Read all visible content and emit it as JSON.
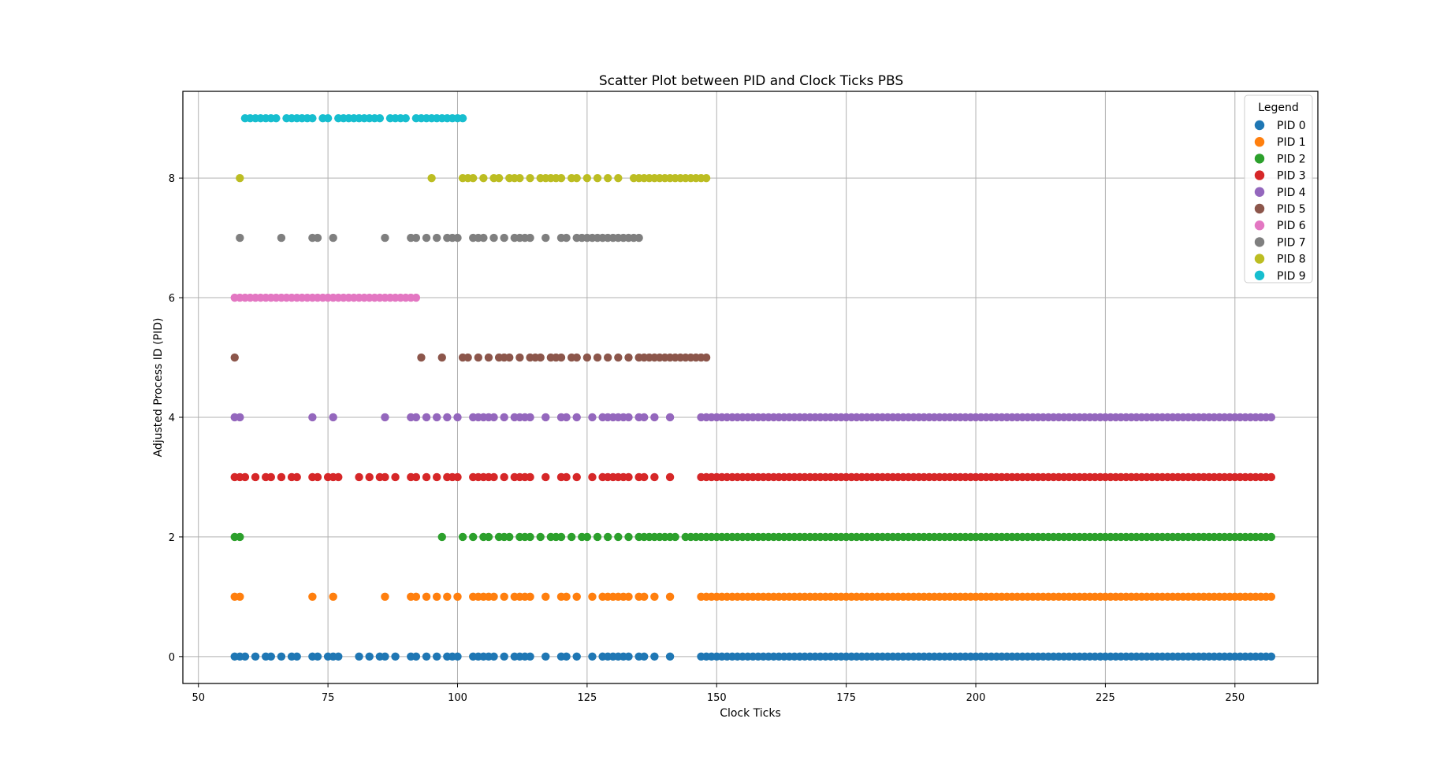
{
  "chart_data": {
    "type": "scatter",
    "title": "Scatter Plot between PID and Clock Ticks PBS",
    "xlabel": "Clock Ticks",
    "ylabel": "Adjusted Process ID (PID)",
    "xlim": [
      47,
      266
    ],
    "ylim": [
      -0.45,
      9.45
    ],
    "xticks": [
      50,
      75,
      100,
      125,
      150,
      175,
      200,
      225,
      250
    ],
    "yticks": [
      0,
      2,
      4,
      6,
      8
    ],
    "grid": true,
    "legend": {
      "title": "Legend",
      "placement": "top-right"
    },
    "colors": [
      "#1f77b4",
      "#ff7f0e",
      "#2ca02c",
      "#d62728",
      "#9467bd",
      "#8c564b",
      "#e377c2",
      "#7f7f7f",
      "#bcbd22",
      "#17becf"
    ],
    "series": [
      {
        "name": "PID 0",
        "y": 0,
        "x": [
          57,
          58,
          59,
          61,
          63,
          64,
          66,
          68,
          69,
          72,
          73,
          75,
          76,
          77,
          81,
          83,
          85,
          86,
          88,
          91,
          92,
          94,
          96,
          98,
          99,
          100,
          103,
          104,
          105,
          106,
          107,
          109,
          111,
          112,
          113,
          114,
          117,
          120,
          121,
          123,
          126,
          128,
          129,
          130,
          131,
          132,
          133,
          135,
          136,
          138,
          141,
          147,
          148,
          149,
          150,
          151,
          152,
          153,
          154,
          155,
          156,
          157,
          158,
          159,
          160,
          161,
          162,
          163,
          164,
          165,
          166,
          167,
          168,
          169,
          170,
          171,
          172,
          173,
          174,
          175,
          176,
          177,
          178,
          179,
          180,
          181,
          182,
          183,
          184,
          185,
          186,
          187,
          188,
          189,
          190,
          191,
          192,
          193,
          194,
          195,
          196,
          197,
          198,
          199,
          200,
          201,
          202,
          203,
          204,
          205,
          206,
          207,
          208,
          209,
          210,
          211,
          212,
          213,
          214,
          215,
          216,
          217,
          218,
          219,
          220,
          221,
          222,
          223,
          224,
          225,
          226,
          227,
          228,
          229,
          230,
          231,
          232,
          233,
          234,
          235,
          236,
          237,
          238,
          239,
          240,
          241,
          242,
          243,
          244,
          245,
          246,
          247,
          248,
          249,
          250,
          251,
          252,
          253,
          254,
          255,
          256,
          257
        ]
      },
      {
        "name": "PID 1",
        "y": 1,
        "x": [
          57,
          58,
          72,
          76,
          86,
          91,
          92,
          94,
          96,
          98,
          100,
          103,
          104,
          105,
          106,
          107,
          109,
          111,
          112,
          113,
          114,
          117,
          120,
          121,
          123,
          126,
          128,
          129,
          130,
          131,
          132,
          133,
          135,
          136,
          138,
          141,
          147,
          148,
          149,
          150,
          151,
          152,
          153,
          154,
          155,
          156,
          157,
          158,
          159,
          160,
          161,
          162,
          163,
          164,
          165,
          166,
          167,
          168,
          169,
          170,
          171,
          172,
          173,
          174,
          175,
          176,
          177,
          178,
          179,
          180,
          181,
          182,
          183,
          184,
          185,
          186,
          187,
          188,
          189,
          190,
          191,
          192,
          193,
          194,
          195,
          196,
          197,
          198,
          199,
          200,
          201,
          202,
          203,
          204,
          205,
          206,
          207,
          208,
          209,
          210,
          211,
          212,
          213,
          214,
          215,
          216,
          217,
          218,
          219,
          220,
          221,
          222,
          223,
          224,
          225,
          226,
          227,
          228,
          229,
          230,
          231,
          232,
          233,
          234,
          235,
          236,
          237,
          238,
          239,
          240,
          241,
          242,
          243,
          244,
          245,
          246,
          247,
          248,
          249,
          250,
          251,
          252,
          253,
          254,
          255,
          256,
          257
        ]
      },
      {
        "name": "PID 2",
        "y": 2,
        "x": [
          57,
          58,
          97,
          101,
          103,
          105,
          106,
          108,
          109,
          110,
          112,
          113,
          114,
          116,
          118,
          119,
          120,
          122,
          124,
          125,
          127,
          129,
          131,
          133,
          135,
          136,
          137,
          138,
          139,
          140,
          141,
          142,
          144,
          145,
          146,
          147,
          148,
          149,
          150,
          151,
          152,
          153,
          154,
          155,
          156,
          157,
          158,
          159,
          160,
          161,
          162,
          163,
          164,
          165,
          166,
          167,
          168,
          169,
          170,
          171,
          172,
          173,
          174,
          175,
          176,
          177,
          178,
          179,
          180,
          181,
          182,
          183,
          184,
          185,
          186,
          187,
          188,
          189,
          190,
          191,
          192,
          193,
          194,
          195,
          196,
          197,
          198,
          199,
          200,
          201,
          202,
          203,
          204,
          205,
          206,
          207,
          208,
          209,
          210,
          211,
          212,
          213,
          214,
          215,
          216,
          217,
          218,
          219,
          220,
          221,
          222,
          223,
          224,
          225,
          226,
          227,
          228,
          229,
          230,
          231,
          232,
          233,
          234,
          235,
          236,
          237,
          238,
          239,
          240,
          241,
          242,
          243,
          244,
          245,
          246,
          247,
          248,
          249,
          250,
          251,
          252,
          253,
          254,
          255,
          256,
          257
        ]
      },
      {
        "name": "PID 3",
        "y": 3,
        "x": [
          57,
          58,
          59,
          61,
          63,
          64,
          66,
          68,
          69,
          72,
          73,
          75,
          76,
          77,
          81,
          83,
          85,
          86,
          88,
          91,
          92,
          94,
          96,
          98,
          99,
          100,
          103,
          104,
          105,
          106,
          107,
          109,
          111,
          112,
          113,
          114,
          117,
          120,
          121,
          123,
          126,
          128,
          129,
          130,
          131,
          132,
          133,
          135,
          136,
          138,
          141,
          147,
          148,
          149,
          150,
          151,
          152,
          153,
          154,
          155,
          156,
          157,
          158,
          159,
          160,
          161,
          162,
          163,
          164,
          165,
          166,
          167,
          168,
          169,
          170,
          171,
          172,
          173,
          174,
          175,
          176,
          177,
          178,
          179,
          180,
          181,
          182,
          183,
          184,
          185,
          186,
          187,
          188,
          189,
          190,
          191,
          192,
          193,
          194,
          195,
          196,
          197,
          198,
          199,
          200,
          201,
          202,
          203,
          204,
          205,
          206,
          207,
          208,
          209,
          210,
          211,
          212,
          213,
          214,
          215,
          216,
          217,
          218,
          219,
          220,
          221,
          222,
          223,
          224,
          225,
          226,
          227,
          228,
          229,
          230,
          231,
          232,
          233,
          234,
          235,
          236,
          237,
          238,
          239,
          240,
          241,
          242,
          243,
          244,
          245,
          246,
          247,
          248,
          249,
          250,
          251,
          252,
          253,
          254,
          255,
          256,
          257
        ]
      },
      {
        "name": "PID 4",
        "y": 4,
        "x": [
          57,
          58,
          72,
          76,
          86,
          91,
          92,
          94,
          96,
          98,
          100,
          103,
          104,
          105,
          106,
          107,
          109,
          111,
          112,
          113,
          114,
          117,
          120,
          121,
          123,
          126,
          128,
          129,
          130,
          131,
          132,
          133,
          135,
          136,
          138,
          141,
          147,
          148,
          149,
          150,
          151,
          152,
          153,
          154,
          155,
          156,
          157,
          158,
          159,
          160,
          161,
          162,
          163,
          164,
          165,
          166,
          167,
          168,
          169,
          170,
          171,
          172,
          173,
          174,
          175,
          176,
          177,
          178,
          179,
          180,
          181,
          182,
          183,
          184,
          185,
          186,
          187,
          188,
          189,
          190,
          191,
          192,
          193,
          194,
          195,
          196,
          197,
          198,
          199,
          200,
          201,
          202,
          203,
          204,
          205,
          206,
          207,
          208,
          209,
          210,
          211,
          212,
          213,
          214,
          215,
          216,
          217,
          218,
          219,
          220,
          221,
          222,
          223,
          224,
          225,
          226,
          227,
          228,
          229,
          230,
          231,
          232,
          233,
          234,
          235,
          236,
          237,
          238,
          239,
          240,
          241,
          242,
          243,
          244,
          245,
          246,
          247,
          248,
          249,
          250,
          251,
          252,
          253,
          254,
          255,
          256,
          257
        ]
      },
      {
        "name": "PID 5",
        "y": 5,
        "x": [
          57,
          93,
          97,
          101,
          102,
          104,
          106,
          108,
          109,
          110,
          112,
          114,
          115,
          116,
          118,
          119,
          120,
          122,
          123,
          125,
          127,
          129,
          131,
          133,
          135,
          136,
          137,
          138,
          139,
          140,
          141,
          142,
          143,
          144,
          145,
          146,
          147,
          148
        ]
      },
      {
        "name": "PID 6",
        "y": 6,
        "x": [
          57,
          58,
          59,
          60,
          61,
          62,
          63,
          64,
          65,
          66,
          67,
          68,
          69,
          70,
          71,
          72,
          73,
          74,
          75,
          76,
          77,
          78,
          79,
          80,
          81,
          82,
          83,
          84,
          85,
          86,
          87,
          88,
          89,
          90,
          91,
          92
        ]
      },
      {
        "name": "PID 7",
        "y": 7,
        "x": [
          58,
          66,
          72,
          73,
          76,
          86,
          91,
          92,
          94,
          96,
          98,
          99,
          100,
          103,
          104,
          105,
          107,
          109,
          111,
          112,
          113,
          114,
          117,
          120,
          121,
          123,
          124,
          125,
          126,
          127,
          128,
          129,
          130,
          131,
          132,
          133,
          134,
          135
        ]
      },
      {
        "name": "PID 8",
        "y": 8,
        "x": [
          58,
          95,
          101,
          102,
          103,
          105,
          107,
          108,
          110,
          111,
          112,
          114,
          116,
          117,
          118,
          119,
          120,
          122,
          123,
          125,
          127,
          129,
          131,
          134,
          135,
          136,
          137,
          138,
          139,
          140,
          141,
          142,
          143,
          144,
          145,
          146,
          147,
          148
        ]
      },
      {
        "name": "PID 9",
        "y": 9,
        "x": [
          59,
          60,
          61,
          62,
          63,
          64,
          65,
          67,
          68,
          69,
          70,
          71,
          72,
          74,
          75,
          77,
          78,
          79,
          80,
          81,
          82,
          83,
          84,
          85,
          87,
          88,
          89,
          90,
          92,
          93,
          94,
          95,
          96,
          97,
          98,
          99,
          100,
          101
        ]
      }
    ]
  }
}
